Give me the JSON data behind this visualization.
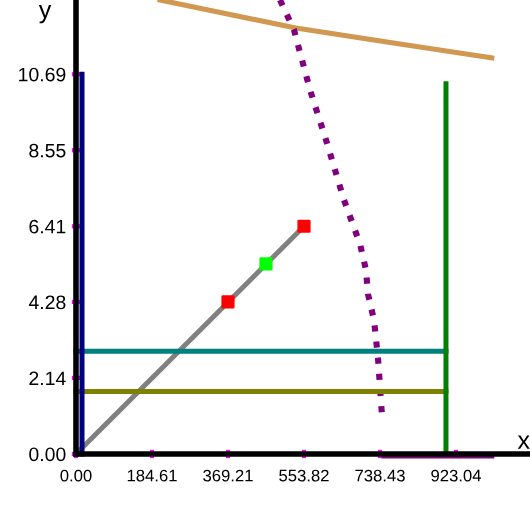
{
  "chart_data": {
    "type": "line",
    "xlabel": "x",
    "ylabel": "y",
    "xlim": [
      -184.61,
      1102.8
    ],
    "ylim": [
      -2.14,
      12.78
    ],
    "xticks": [
      {
        "value": 0,
        "label": "0.00"
      },
      {
        "value": 184.61,
        "label": "184.61"
      },
      {
        "value": 369.21,
        "label": "369.21"
      },
      {
        "value": 553.82,
        "label": "553.82"
      },
      {
        "value": 738.43,
        "label": "738.43"
      },
      {
        "value": 923.04,
        "label": "923.04"
      }
    ],
    "yticks": [
      {
        "value": 0,
        "label": "0.00"
      },
      {
        "value": 2.14,
        "label": "2.14"
      },
      {
        "value": 4.28,
        "label": "4.28"
      },
      {
        "value": 6.41,
        "label": "6.41"
      },
      {
        "value": 8.55,
        "label": "8.55"
      },
      {
        "value": 10.69,
        "label": "10.69"
      }
    ],
    "grid": false,
    "legend": false,
    "series": [
      {
        "color": "#d09850",
        "x": [
          204,
          534,
          787,
          1010
        ],
        "values": [
          12.78,
          11.99,
          11.54,
          11.15
        ]
      },
      {
        "color": "#800080",
        "line_style": "dotted",
        "x": [
          495.5,
          529.5,
          568.4,
          607.3,
          651,
          689.9,
          704.4,
          709.3,
          723.9,
          733.6,
          743.3
        ],
        "values": [
          12.78,
          11.94,
          10.25,
          8.84,
          7.15,
          5.91,
          5.18,
          4.5,
          3.77,
          2.7,
          1.07
        ]
      },
      {
        "color": "#808080",
        "x": [
          0,
          553.82
        ],
        "values": [
          0,
          6.41
        ]
      },
      {
        "color": "#008080",
        "x": [
          0,
          898.7
        ],
        "values": [
          2.89,
          2.89
        ]
      },
      {
        "color": "#808000",
        "x": [
          0,
          898.7
        ],
        "values": [
          1.76,
          1.76
        ]
      },
      {
        "color": "#008000",
        "x": [
          898.7,
          898.7
        ],
        "values": [
          0,
          10.42
        ]
      },
      {
        "color": "#000080",
        "x": [
          14.6,
          14.6
        ],
        "values": [
          0,
          10.69
        ]
      },
      {
        "color": "#800080",
        "x": [
          748,
          1010
        ],
        "values": [
          -0.06,
          -0.06
        ]
      },
      {
        "type": "scatter",
        "marker": "square",
        "color": "#ff0000",
        "x": [
          369.21,
          553.82
        ],
        "values": [
          4.28,
          6.41
        ]
      },
      {
        "type": "scatter",
        "marker": "square",
        "color": "#00ff00",
        "x": [
          461.5
        ],
        "values": [
          5.35
        ]
      }
    ]
  }
}
